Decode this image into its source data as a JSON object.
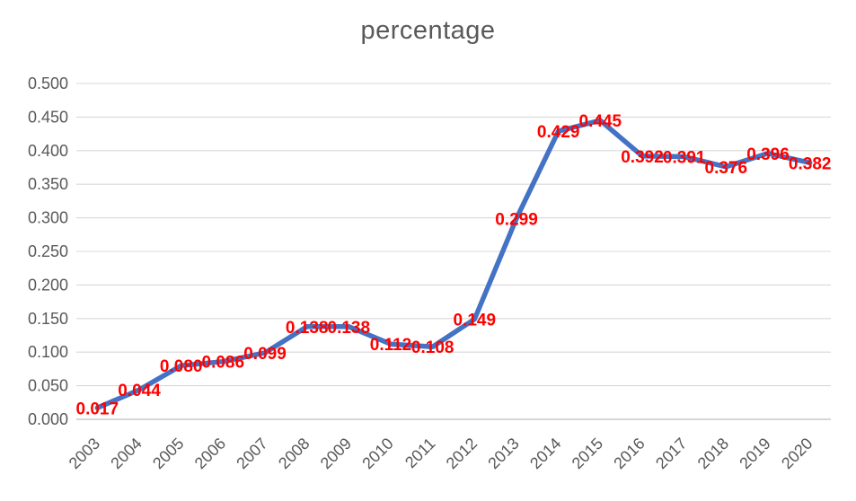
{
  "chart_data": {
    "type": "line",
    "title": "percentage",
    "categories": [
      "2003",
      "2004",
      "2005",
      "2006",
      "2007",
      "2008",
      "2009",
      "2010",
      "2011",
      "2012",
      "2013",
      "2014",
      "2015",
      "2016",
      "2017",
      "2018",
      "2019",
      "2020"
    ],
    "series": [
      {
        "name": "percentage",
        "values": [
          0.017,
          0.044,
          0.08,
          0.086,
          0.099,
          0.138,
          0.138,
          0.112,
          0.108,
          0.149,
          0.299,
          0.429,
          0.445,
          0.392,
          0.391,
          0.376,
          0.396,
          0.382
        ],
        "data_labels": [
          "0.017",
          "0.044",
          "0.080",
          "0.086",
          "0.099",
          "0.138",
          "0.138",
          "0.112",
          "0.108",
          "0.149",
          "0.299",
          "0.429",
          "0.445",
          "0.392",
          "0.391",
          "0.376",
          "0.396",
          "0.382"
        ]
      }
    ],
    "xlabel": "",
    "ylabel": "",
    "ylim": [
      0,
      0.5
    ],
    "y_tick_step": 0.05,
    "y_tick_labels": [
      "0.000",
      "0.050",
      "0.100",
      "0.150",
      "0.200",
      "0.250",
      "0.300",
      "0.350",
      "0.400",
      "0.450",
      "0.500"
    ],
    "grid": "horizontal",
    "legend_position": "none",
    "x_tick_rotation_deg": -45,
    "data_label_position": "centered-on-point",
    "colors": {
      "line": "#4472C4",
      "data_label": "#FF0000",
      "axis_text": "#595959",
      "title_text": "#595959",
      "gridline": "#D9D9D9",
      "axis_line": "#C9C9CC",
      "background": "#FFFFFF"
    }
  }
}
